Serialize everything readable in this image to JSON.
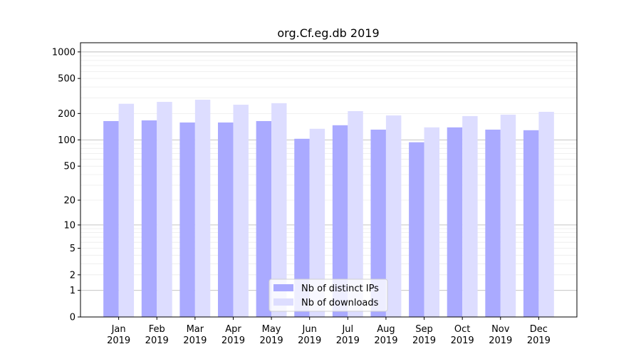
{
  "chart_data": {
    "type": "bar",
    "title": "org.Cf.eg.db 2019",
    "xlabel": "",
    "ylabel": "",
    "scale": "log10(y+1)",
    "ylim": [
      0,
      1270
    ],
    "yticks": [
      0,
      1,
      2,
      5,
      10,
      20,
      50,
      100,
      200,
      500,
      1000
    ],
    "ytick_labels": [
      "0",
      "1",
      "2",
      "5",
      "10",
      "20",
      "50",
      "100",
      "200",
      "500",
      "1000"
    ],
    "grid": true,
    "legend_position": "lower center",
    "categories": [
      "Jan\n2019",
      "Feb\n2019",
      "Mar\n2019",
      "Apr\n2019",
      "May\n2019",
      "Jun\n2019",
      "Jul\n2019",
      "Aug\n2019",
      "Sep\n2019",
      "Oct\n2019",
      "Nov\n2019",
      "Dec\n2019"
    ],
    "category_months": [
      "Jan",
      "Feb",
      "Mar",
      "Apr",
      "May",
      "Jun",
      "Jul",
      "Aug",
      "Sep",
      "Oct",
      "Nov",
      "Dec"
    ],
    "category_year": "2019",
    "series": [
      {
        "name": "Nb of distinct IPs",
        "color": "#aaaaff",
        "values": [
          164,
          167,
          158,
          158,
          164,
          103,
          147,
          131,
          94,
          139,
          131,
          129
        ]
      },
      {
        "name": "Nb of downloads",
        "color": "#ddddff",
        "values": [
          258,
          271,
          287,
          252,
          262,
          134,
          213,
          190,
          139,
          187,
          194,
          209
        ]
      }
    ]
  }
}
